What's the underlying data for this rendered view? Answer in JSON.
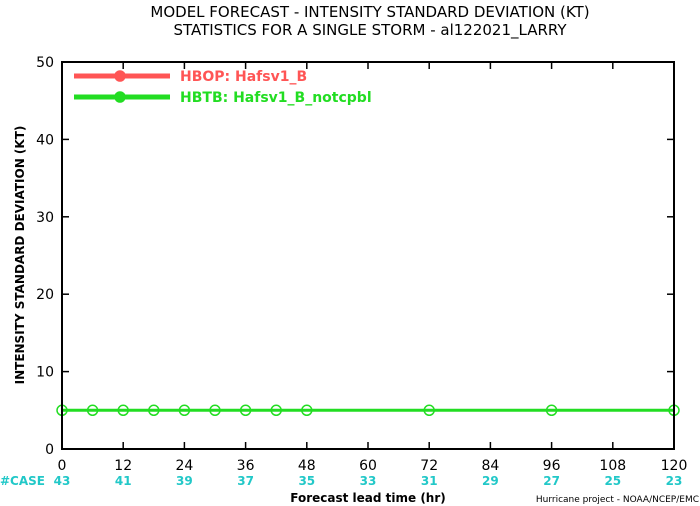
{
  "colors": {
    "hbop": "#ff5555",
    "hbtb": "#22dd22",
    "cases": "#22c8c8",
    "axis": "#000000"
  },
  "chart_data": {
    "type": "line",
    "title": "MODEL FORECAST - INTENSITY STANDARD DEVIATION (KT)",
    "subtitle": "STATISTICS FOR A SINGLE STORM - al122021_LARRY",
    "xlabel": "Forecast lead time (hr)",
    "ylabel": "INTENSITY STANDARD DEVIATION (KT)",
    "xlim": [
      0,
      120
    ],
    "ylim": [
      0,
      50
    ],
    "xticks": [
      0,
      12,
      24,
      36,
      48,
      60,
      72,
      84,
      96,
      108,
      120
    ],
    "yticks": [
      0,
      10,
      20,
      30,
      40,
      50
    ],
    "grid": false,
    "legend": "top-left",
    "cases_label": "#CASE",
    "cases": [
      "43",
      "41",
      "39",
      "37",
      "35",
      "33",
      "31",
      "29",
      "27",
      "25",
      "23"
    ],
    "credit": "Hurricane project - NOAA/NCEP/EMC",
    "series": [
      {
        "name": "HBOP: Hafsv1_B",
        "x": [],
        "y": []
      },
      {
        "name": "HBTB: Hafsv1_B_notcpbl",
        "x": [
          0,
          6,
          12,
          18,
          24,
          30,
          36,
          42,
          48,
          72,
          96,
          120
        ],
        "y": [
          5,
          5,
          5,
          5,
          5,
          5,
          5,
          5,
          5,
          5,
          5,
          5
        ]
      }
    ]
  }
}
